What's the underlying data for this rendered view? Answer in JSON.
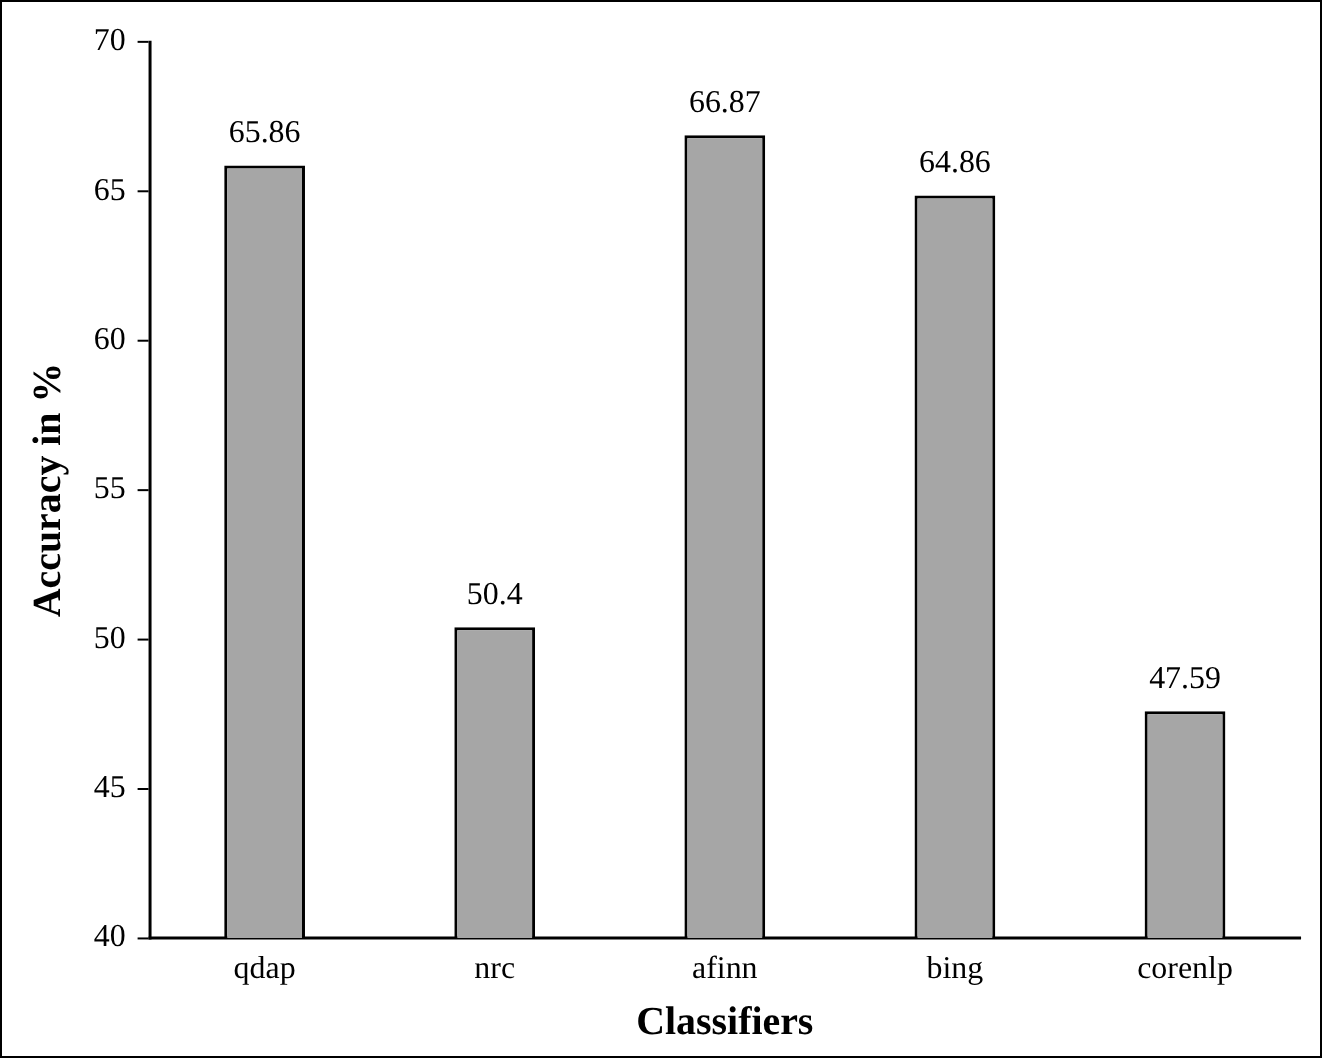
{
  "chart_data": {
    "type": "bar",
    "xlabel": "Classifiers",
    "ylabel": "Accuracy in %",
    "categories": [
      "qdap",
      "nrc",
      "afinn",
      "bing",
      "corenlp"
    ],
    "values": [
      65.86,
      50.4,
      66.87,
      64.86,
      47.59
    ],
    "color": "#a6a6a6",
    "ylim": [
      40,
      70
    ],
    "yticks": [
      40,
      45,
      50,
      55,
      60,
      65,
      70
    ],
    "grid": false,
    "legend": false,
    "data_labels": true
  }
}
